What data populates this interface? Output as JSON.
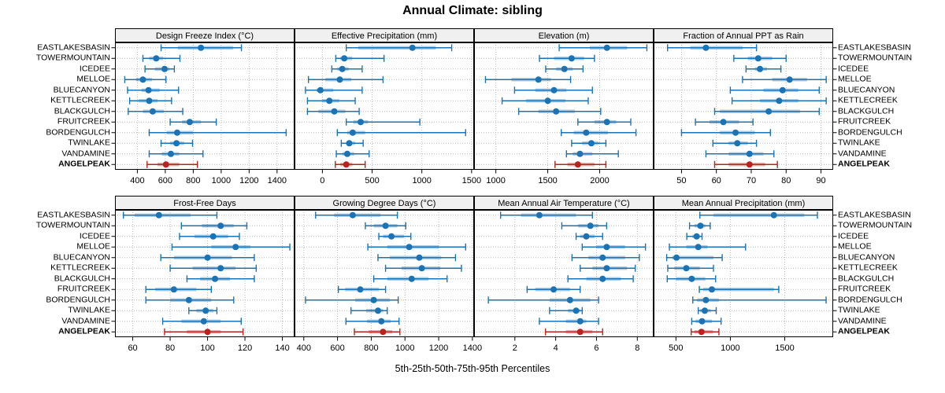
{
  "title": "Annual Climate: sibling",
  "caption": "5th-25th-50th-75th-95th Percentiles",
  "colors": {
    "site": "#1b73b3",
    "highlight": "#b5241f",
    "band_opacity": 0.35,
    "header_bg": "#f0f0f0",
    "panel_border": "#000000",
    "grid": "#bbbbbb",
    "text": "#000000"
  },
  "chart_data": {
    "type": "scatter",
    "subtype": "percentile-interval-dotplot",
    "percentiles": [
      5,
      25,
      50,
      75,
      95
    ],
    "legend_position": "none",
    "grid": "dotted",
    "sites": [
      "EASTLAKESBASIN",
      "TOWERMOUNTAIN",
      "ICEDEE",
      "MELLOE",
      "BLUECANYON",
      "KETTLECREEK",
      "BLACKGULCH",
      "FRUITCREEK",
      "BORDENGULCH",
      "TWINLAKE",
      "VANDAMINE",
      "ANGELPEAK"
    ],
    "highlight_site": "ANGELPEAK",
    "panels": [
      {
        "title": "Design Freeze Index (°C)",
        "xlim": [
          240,
          1525
        ],
        "ticks": [
          400,
          600,
          800,
          1000,
          1200,
          1400
        ],
        "series": [
          [
            570,
            690,
            855,
            1085,
            1145
          ],
          [
            440,
            485,
            535,
            585,
            705
          ],
          [
            455,
            525,
            595,
            630,
            665
          ],
          [
            310,
            390,
            440,
            505,
            605
          ],
          [
            330,
            430,
            480,
            560,
            695
          ],
          [
            345,
            410,
            485,
            545,
            645
          ],
          [
            335,
            440,
            510,
            590,
            725
          ],
          [
            635,
            720,
            775,
            855,
            965
          ],
          [
            485,
            610,
            685,
            800,
            1465
          ],
          [
            570,
            635,
            680,
            735,
            795
          ],
          [
            485,
            575,
            640,
            700,
            870
          ],
          [
            470,
            545,
            605,
            700,
            830
          ]
        ]
      },
      {
        "title": "Effective Precipitation (mm)",
        "xlim": [
          -280,
          1525
        ],
        "ticks": [
          0,
          500,
          1000,
          1500
        ],
        "series": [
          [
            240,
            360,
            905,
            1140,
            1300
          ],
          [
            135,
            180,
            220,
            300,
            620
          ],
          [
            95,
            150,
            200,
            265,
            400
          ],
          [
            -140,
            30,
            175,
            290,
            610
          ],
          [
            -170,
            -60,
            -20,
            110,
            400
          ],
          [
            -150,
            0,
            70,
            170,
            330
          ],
          [
            -150,
            -40,
            120,
            230,
            370
          ],
          [
            240,
            310,
            385,
            460,
            980
          ],
          [
            150,
            250,
            305,
            430,
            1440
          ],
          [
            190,
            240,
            270,
            330,
            410
          ],
          [
            140,
            200,
            250,
            320,
            470
          ],
          [
            130,
            180,
            240,
            300,
            430
          ]
        ]
      },
      {
        "title": "Elevation (m)",
        "xlim": [
          790,
          2520
        ],
        "ticks": [
          1000,
          1500,
          2000
        ],
        "series": [
          [
            1610,
            1905,
            2070,
            2265,
            2455
          ],
          [
            1420,
            1560,
            1730,
            1850,
            1950
          ],
          [
            1480,
            1580,
            1660,
            1740,
            1840
          ],
          [
            900,
            1150,
            1410,
            1530,
            1720
          ],
          [
            1180,
            1380,
            1560,
            1680,
            1930
          ],
          [
            1060,
            1290,
            1500,
            1670,
            1890
          ],
          [
            1220,
            1410,
            1580,
            1760,
            2010
          ],
          [
            1790,
            1950,
            2070,
            2160,
            2300
          ],
          [
            1630,
            1750,
            1870,
            2080,
            2350
          ],
          [
            1730,
            1830,
            1920,
            1990,
            2060
          ],
          [
            1680,
            1740,
            1810,
            1930,
            2180
          ],
          [
            1570,
            1690,
            1790,
            1950,
            2060
          ]
        ]
      },
      {
        "title": "Fraction of Annual PPT as Rain",
        "xlim": [
          42,
          93.5
        ],
        "ticks": [
          50,
          60,
          70,
          80,
          90
        ],
        "series": [
          [
            46,
            52.5,
            57,
            67.5,
            71.5
          ],
          [
            65,
            69,
            72,
            76,
            80
          ],
          [
            68.5,
            71,
            72.5,
            74.5,
            78.5
          ],
          [
            67.5,
            76,
            81,
            86,
            91.5
          ],
          [
            64,
            73.5,
            79,
            83.5,
            89.5
          ],
          [
            64.5,
            72.5,
            78,
            83.5,
            91.5
          ],
          [
            59.5,
            61,
            75,
            84,
            89.5
          ],
          [
            54,
            58,
            62,
            66.5,
            70.5
          ],
          [
            50,
            61,
            65.5,
            71,
            75.5
          ],
          [
            59,
            63.5,
            66,
            69,
            71.5
          ],
          [
            57,
            63.5,
            69.5,
            73.5,
            76.5
          ],
          [
            59.5,
            63.5,
            69.5,
            74,
            77.5
          ]
        ]
      },
      {
        "title": "Frost-Free Days",
        "xlim": [
          50.5,
          146.5
        ],
        "ticks": [
          60,
          80,
          100,
          120,
          140
        ],
        "series": [
          [
            55,
            61,
            74,
            91,
            105
          ],
          [
            86,
            97,
            107,
            114,
            121
          ],
          [
            85,
            93,
            103,
            111,
            117
          ],
          [
            81,
            102,
            115,
            123,
            144
          ],
          [
            75,
            82,
            100,
            113,
            125
          ],
          [
            80,
            92,
            107,
            115,
            126
          ],
          [
            89,
            96,
            104,
            112,
            125
          ],
          [
            67,
            72,
            82,
            94,
            102
          ],
          [
            67,
            80,
            90,
            102,
            114
          ],
          [
            90,
            94,
            99,
            103,
            105
          ],
          [
            76,
            86,
            98,
            107,
            118
          ],
          [
            77,
            89,
            100,
            107,
            119
          ]
        ]
      },
      {
        "title": "Growing Degree Days (°C)",
        "xlim": [
          345,
          1410
        ],
        "ticks": [
          400,
          600,
          800,
          1000,
          1200,
          1400
        ],
        "series": [
          [
            470,
            580,
            690,
            855,
            955
          ],
          [
            765,
            815,
            885,
            955,
            1005
          ],
          [
            845,
            870,
            920,
            995,
            1035
          ],
          [
            780,
            895,
            1025,
            1200,
            1360
          ],
          [
            840,
            910,
            1085,
            1215,
            1300
          ],
          [
            885,
            980,
            1100,
            1210,
            1335
          ],
          [
            815,
            895,
            1040,
            1140,
            1250
          ],
          [
            605,
            645,
            735,
            845,
            885
          ],
          [
            410,
            705,
            815,
            910,
            960
          ],
          [
            680,
            770,
            840,
            870,
            895
          ],
          [
            650,
            775,
            860,
            915,
            965
          ],
          [
            700,
            785,
            870,
            925,
            970
          ]
        ]
      },
      {
        "title": "Mean Annual Air Temperature (°C)",
        "xlim": [
          0,
          8.8
        ],
        "ticks": [
          2,
          4,
          6,
          8
        ],
        "series": [
          [
            1.3,
            2.3,
            3.2,
            5.0,
            5.8
          ],
          [
            4.3,
            5.1,
            5.7,
            6.1,
            6.5
          ],
          [
            5.0,
            5.2,
            5.5,
            5.9,
            6.3
          ],
          [
            5.3,
            6.0,
            6.5,
            7.4,
            8.4
          ],
          [
            4.8,
            5.6,
            6.3,
            7.4,
            8.1
          ],
          [
            5.2,
            5.8,
            6.5,
            7.5,
            7.9
          ],
          [
            4.6,
            5.5,
            6.3,
            7.2,
            7.8
          ],
          [
            2.6,
            3.0,
            3.9,
            4.7,
            5.2
          ],
          [
            0.7,
            3.7,
            4.7,
            5.7,
            6.1
          ],
          [
            3.7,
            4.6,
            5.0,
            5.2,
            5.3
          ],
          [
            3.2,
            4.5,
            5.2,
            5.5,
            6.1
          ],
          [
            3.5,
            4.5,
            5.2,
            5.8,
            6.3
          ]
        ]
      },
      {
        "title": "Mean Annual Precipitation (mm)",
        "xlim": [
          295,
          1945
        ],
        "ticks": [
          500,
          1000,
          1500
        ],
        "series": [
          [
            720,
            845,
            1400,
            1680,
            1800
          ],
          [
            625,
            670,
            725,
            770,
            815
          ],
          [
            600,
            650,
            690,
            720,
            740
          ],
          [
            440,
            595,
            705,
            790,
            1140
          ],
          [
            415,
            465,
            505,
            845,
            925
          ],
          [
            425,
            485,
            595,
            720,
            845
          ],
          [
            420,
            500,
            645,
            770,
            865
          ],
          [
            715,
            750,
            830,
            1400,
            1445
          ],
          [
            655,
            695,
            775,
            895,
            1880
          ],
          [
            705,
            720,
            765,
            820,
            870
          ],
          [
            645,
            680,
            740,
            830,
            915
          ],
          [
            640,
            670,
            735,
            840,
            895
          ]
        ]
      }
    ]
  }
}
